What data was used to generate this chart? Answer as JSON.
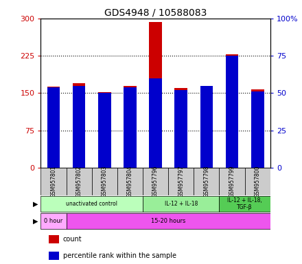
{
  "title": "GDS4948 / 10588083",
  "samples": [
    "GSM957801",
    "GSM957802",
    "GSM957803",
    "GSM957804",
    "GSM957796",
    "GSM957797",
    "GSM957798",
    "GSM957799",
    "GSM957800"
  ],
  "count_values": [
    163,
    170,
    152,
    165,
    293,
    160,
    165,
    228,
    158
  ],
  "percentile_values": [
    54,
    55,
    50,
    54,
    60,
    52,
    55,
    75,
    51
  ],
  "left_ylim": [
    0,
    300
  ],
  "right_ylim": [
    0,
    100
  ],
  "left_yticks": [
    0,
    75,
    150,
    225,
    300
  ],
  "right_yticks": [
    0,
    25,
    50,
    75,
    100
  ],
  "right_yticklabels": [
    "0",
    "25",
    "50",
    "75",
    "100%"
  ],
  "bar_color_red": "#cc0000",
  "bar_color_blue": "#0000cc",
  "bar_width": 0.5,
  "protocol_groups": [
    {
      "label": "unactivated control",
      "start": 0,
      "end": 4,
      "color": "#bbffbb"
    },
    {
      "label": "IL-12 + IL-18",
      "start": 4,
      "end": 7,
      "color": "#99ee99"
    },
    {
      "label": "IL-12 + IL-18,\nTGF-β",
      "start": 7,
      "end": 9,
      "color": "#55cc55"
    }
  ],
  "time_groups": [
    {
      "label": "0 hour",
      "start": 0,
      "end": 1,
      "color": "#ffaaff"
    },
    {
      "label": "15-20 hours",
      "start": 1,
      "end": 9,
      "color": "#ee55ee"
    }
  ],
  "legend_items": [
    {
      "color": "#cc0000",
      "label": "count"
    },
    {
      "color": "#0000cc",
      "label": "percentile rank within the sample"
    }
  ],
  "grid_color": "#000000",
  "tick_label_color_left": "#cc0000",
  "tick_label_color_right": "#0000cc",
  "bg_sample_row": "#cccccc",
  "bg_figure": "#ffffff"
}
